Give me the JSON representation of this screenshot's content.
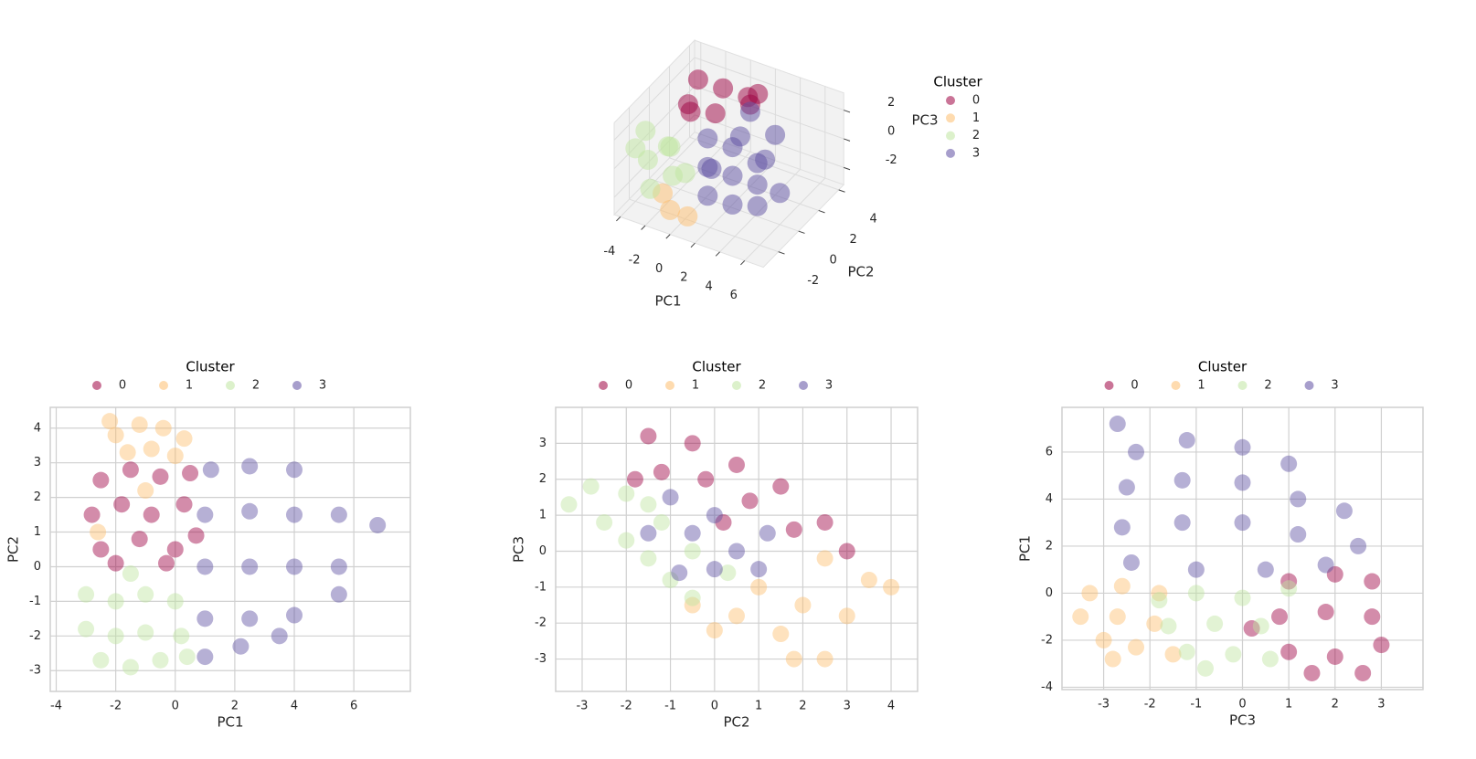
{
  "chart_data": [
    {
      "type": "scatter3d",
      "xlabel": "PC1",
      "ylabel": "PC2",
      "zlabel": "PC3",
      "xlim": [
        -4.5,
        7.5
      ],
      "ylim": [
        -3.5,
        4.5
      ],
      "zlim": [
        -3.2,
        3.2
      ],
      "xticks": [
        -4,
        -2,
        0,
        2,
        4,
        6
      ],
      "yticks": [
        -2,
        0,
        2,
        4
      ],
      "zticks": [
        -2,
        0,
        2
      ],
      "legend_title": "Cluster",
      "legend": "right",
      "grid": true,
      "series": [
        {
          "name": "0",
          "color": "#9e0142",
          "x": [
            -3,
            -1,
            1,
            -2,
            0,
            2,
            -3,
            1
          ],
          "y": [
            3,
            3,
            3,
            1,
            1,
            2,
            2,
            4
          ],
          "z": [
            2,
            2,
            2,
            1.5,
            2,
            2.5,
            1,
            1.5
          ]
        },
        {
          "name": "1",
          "color": "#fdbe6e",
          "x": [
            -1,
            1,
            0
          ],
          "y": [
            -3,
            -3,
            -3.5
          ],
          "z": [
            -1,
            -2,
            -1.5
          ]
        },
        {
          "name": "2",
          "color": "#bfe5a0",
          "x": [
            -4,
            -3,
            -2,
            -1,
            -3,
            -4,
            0,
            -2
          ],
          "y": [
            -1,
            -2,
            -1,
            -2,
            0,
            -2,
            -2,
            -3
          ],
          "z": [
            1,
            0,
            0.5,
            -0.5,
            -0.5,
            0.5,
            0,
            -1
          ]
        },
        {
          "name": "3",
          "color": "#5e4fa2",
          "x": [
            1,
            3,
            5,
            1,
            3,
            5,
            1,
            3,
            5,
            2,
            4,
            6,
            2,
            4,
            0.5
          ],
          "y": [
            -1,
            -1,
            -1,
            -1,
            -1,
            -1,
            -1,
            -1,
            -1,
            1,
            1,
            0,
            2,
            2,
            0
          ],
          "z": [
            2,
            2,
            1.5,
            0,
            0,
            0,
            -2,
            -2,
            -1.5,
            1,
            0,
            -1,
            2,
            1,
            -1
          ]
        }
      ]
    },
    {
      "type": "scatter",
      "xlabel": "PC1",
      "ylabel": "PC2",
      "xlim": [
        -4.2,
        7.9
      ],
      "ylim": [
        -3.6,
        4.6
      ],
      "xticks": [
        -4,
        -2,
        0,
        2,
        4,
        6
      ],
      "yticks": [
        -3,
        -2,
        -1,
        0,
        1,
        2,
        3,
        4
      ],
      "legend_title": "Cluster",
      "legend": "top",
      "grid": true,
      "series": [
        {
          "name": "0",
          "color": "#9e0142",
          "x": [
            -2.5,
            -1.5,
            -0.5,
            0.5,
            -2.8,
            -1.8,
            -0.8,
            0.3,
            -2.5,
            -1.2,
            0,
            0.7,
            -2,
            -0.3
          ],
          "y": [
            2.5,
            2.8,
            2.6,
            2.7,
            1.5,
            1.8,
            1.5,
            1.8,
            0.5,
            0.8,
            0.5,
            0.9,
            0.1,
            0.1
          ]
        },
        {
          "name": "1",
          "color": "#fdbe6e",
          "x": [
            -2,
            -1.2,
            -0.4,
            0.3,
            -1.6,
            -0.8,
            -2.2,
            0,
            -1,
            -2.6
          ],
          "y": [
            3.8,
            4.1,
            4.0,
            3.7,
            3.3,
            3.4,
            4.2,
            3.2,
            2.2,
            1.0
          ]
        },
        {
          "name": "2",
          "color": "#bfe5a0",
          "x": [
            -3,
            -2,
            -1,
            0,
            -3,
            -2,
            -1,
            0.2,
            -2.5,
            -1.5,
            -0.5,
            0.4,
            -1.5
          ],
          "y": [
            -0.8,
            -1,
            -0.8,
            -1,
            -1.8,
            -2,
            -1.9,
            -2,
            -2.7,
            -2.9,
            -2.7,
            -2.6,
            -0.2
          ]
        },
        {
          "name": "3",
          "color": "#5e4fa2",
          "x": [
            1.2,
            2.5,
            4,
            1,
            2.5,
            4,
            5.5,
            1,
            2.5,
            4,
            5.5,
            6.8,
            1,
            2.5,
            4,
            5.5,
            1,
            2.2,
            3.5
          ],
          "y": [
            2.8,
            2.9,
            2.8,
            1.5,
            1.6,
            1.5,
            1.5,
            0,
            0,
            0,
            0,
            1.2,
            -1.5,
            -1.5,
            -1.4,
            -0.8,
            -2.6,
            -2.3,
            -2
          ]
        }
      ]
    },
    {
      "type": "scatter",
      "xlabel": "PC2",
      "ylabel": "PC3",
      "xlim": [
        -3.6,
        4.6
      ],
      "ylim": [
        -3.9,
        4.0
      ],
      "xticks": [
        -3,
        -2,
        -1,
        0,
        1,
        2,
        3,
        4
      ],
      "yticks": [
        -3,
        -2,
        -1,
        0,
        1,
        2,
        3
      ],
      "legend_title": "Cluster",
      "legend": "top",
      "grid": true,
      "series": [
        {
          "name": "0",
          "color": "#9e0142",
          "x": [
            -1.5,
            -0.5,
            0.5,
            1.5,
            2.5,
            3,
            -1.2,
            -0.2,
            0.8,
            1.8,
            -1.8,
            0.2
          ],
          "y": [
            3.2,
            3,
            2.4,
            1.8,
            0.8,
            0,
            2.2,
            2,
            1.4,
            0.6,
            2,
            0.8
          ]
        },
        {
          "name": "1",
          "color": "#fdbe6e",
          "x": [
            -0.5,
            0.5,
            1.5,
            2.5,
            1,
            2,
            3,
            3.5,
            4,
            2.5,
            1.8,
            0
          ],
          "y": [
            -1.5,
            -1.8,
            -2.3,
            -3,
            -1,
            -1.5,
            -1.8,
            -0.8,
            -1,
            -0.2,
            -3,
            -2.2
          ]
        },
        {
          "name": "2",
          "color": "#bfe5a0",
          "x": [
            -3.3,
            -2.5,
            -2,
            -1.5,
            -1,
            -0.5,
            -2.8,
            -2,
            -1.2,
            -0.5,
            0.3,
            -1.5
          ],
          "y": [
            1.3,
            0.8,
            0.3,
            -0.2,
            -0.8,
            -1.3,
            1.8,
            1.6,
            0.8,
            0,
            -0.6,
            1.3
          ]
        },
        {
          "name": "3",
          "color": "#5e4fa2",
          "x": [
            -1,
            -0.5,
            0,
            0.5,
            1,
            -1.5,
            0,
            1.2,
            -0.8
          ],
          "y": [
            1.5,
            0.5,
            1,
            0,
            -0.5,
            0.5,
            -0.5,
            0.5,
            -0.6
          ]
        }
      ]
    },
    {
      "type": "scatter",
      "xlabel": "PC3",
      "ylabel": "PC1",
      "xlim": [
        -3.9,
        3.9
      ],
      "ylim": [
        -4.1,
        7.9
      ],
      "xticks": [
        -3,
        -2,
        -1,
        0,
        1,
        2,
        3
      ],
      "yticks": [
        -4,
        -2,
        0,
        2,
        4,
        6
      ],
      "legend_title": "Cluster",
      "legend": "top",
      "grid": true,
      "series": [
        {
          "name": "0",
          "color": "#9e0142",
          "x": [
            1,
            2,
            2.8,
            0.8,
            1.8,
            2.8,
            1,
            2,
            3,
            1.5,
            2.6,
            0.2
          ],
          "y": [
            0.5,
            0.8,
            0.5,
            -1,
            -0.8,
            -1,
            -2.5,
            -2.7,
            -2.2,
            -3.4,
            -3.4,
            -1.5
          ]
        },
        {
          "name": "1",
          "color": "#fdbe6e",
          "x": [
            -3.3,
            -2.6,
            -1.8,
            -3.5,
            -2.7,
            -1.9,
            -3,
            -2.3,
            -1.5,
            -2.8
          ],
          "y": [
            0,
            0.3,
            0,
            -1,
            -1,
            -1.3,
            -2,
            -2.3,
            -2.6,
            -2.8
          ]
        },
        {
          "name": "2",
          "color": "#bfe5a0",
          "x": [
            -1.8,
            -1,
            0,
            1,
            -1.6,
            -0.6,
            0.4,
            -1.2,
            -0.2,
            0.6,
            -0.8
          ],
          "y": [
            -0.3,
            0,
            -0.2,
            0.2,
            -1.4,
            -1.3,
            -1.4,
            -2.5,
            -2.6,
            -2.8,
            -3.2
          ]
        },
        {
          "name": "3",
          "color": "#5e4fa2",
          "x": [
            -2.3,
            -1.2,
            0,
            1,
            -2.5,
            -1.3,
            0,
            1.2,
            2.2,
            -2.6,
            -1.3,
            0,
            1.2,
            2.5,
            -2.4,
            -1,
            0.5,
            1.8,
            -2.7
          ],
          "y": [
            6,
            6.5,
            6.2,
            5.5,
            4.5,
            4.8,
            4.7,
            4,
            3.5,
            2.8,
            3,
            3,
            2.5,
            2,
            1.3,
            1,
            1,
            1.2,
            7.2
          ]
        }
      ]
    }
  ]
}
